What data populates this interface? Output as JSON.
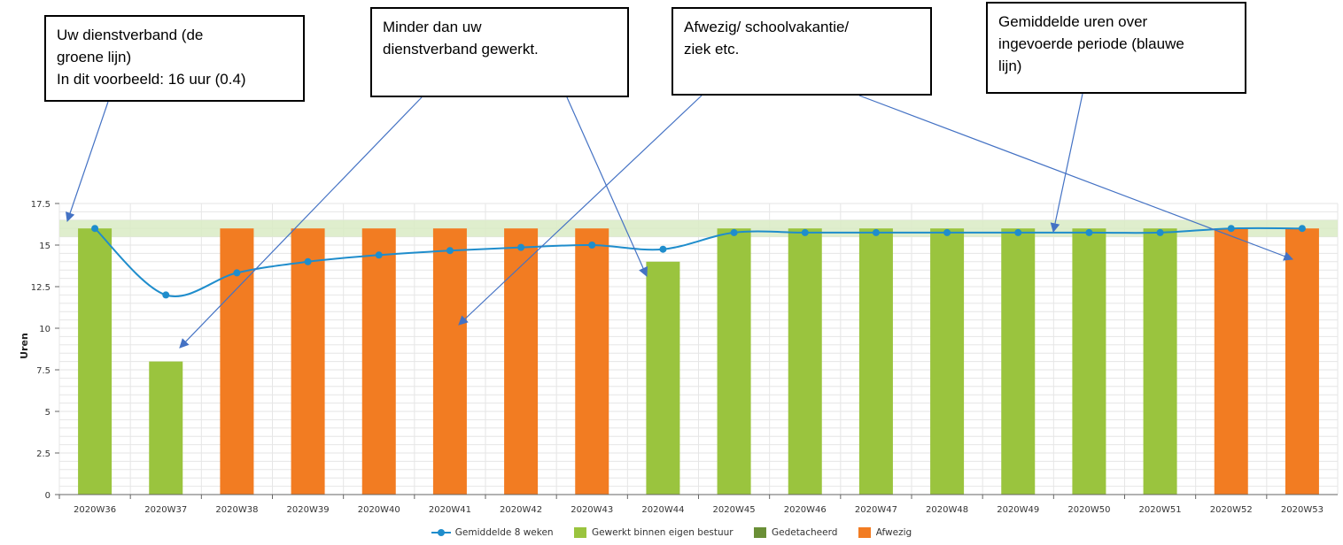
{
  "callouts": [
    {
      "text": "Uw dienstverband (de\ngroene lijn)\nIn dit voorbeeld: 16 uur (0.4)"
    },
    {
      "text": "Minder dan uw\ndienstverband gewerkt."
    },
    {
      "text": "Afwezig/ schoolvakantie/\nziek etc."
    },
    {
      "text": "Gemiddelde uren over\ningevoerde periode (blauwe\nlijn)"
    }
  ],
  "legend": [
    {
      "label": "Gemiddelde 8 weken",
      "kind": "line",
      "color": "#1f8dcc"
    },
    {
      "label": "Gewerkt binnen eigen bestuur",
      "kind": "bar",
      "color": "#9ac43e"
    },
    {
      "label": "Gedetacheerd",
      "kind": "bar",
      "color": "#6a8f36"
    },
    {
      "label": "Afwezig",
      "kind": "bar",
      "color": "#f27c22"
    }
  ],
  "chart_data": {
    "type": "bar",
    "ylabel": "Uren",
    "ylim": [
      0,
      17.5
    ],
    "yticks": [
      "0",
      "2.5",
      "5",
      "7.5",
      "10",
      "12.5",
      "15",
      "17.5"
    ],
    "grid": true,
    "legend_position": "bottom",
    "categories": [
      "2020W36",
      "2020W37",
      "2020W38",
      "2020W39",
      "2020W40",
      "2020W41",
      "2020W42",
      "2020W43",
      "2020W44",
      "2020W45",
      "2020W46",
      "2020W47",
      "2020W48",
      "2020W49",
      "2020W50",
      "2020W51",
      "2020W52",
      "2020W53"
    ],
    "band": {
      "from": 15.5,
      "to": 16.5,
      "color": "#d9ebc4"
    },
    "series": [
      {
        "name": "Gewerkt binnen eigen bestuur",
        "type": "bar",
        "color": "#9ac43e",
        "values": [
          16,
          8,
          null,
          null,
          null,
          null,
          null,
          null,
          14,
          16,
          16,
          16,
          16,
          16,
          16,
          16,
          null,
          null
        ]
      },
      {
        "name": "Gedetacheerd",
        "type": "bar",
        "color": "#6a8f36",
        "values": [
          null,
          null,
          null,
          null,
          null,
          null,
          null,
          null,
          null,
          null,
          null,
          null,
          null,
          null,
          null,
          null,
          null,
          null
        ]
      },
      {
        "name": "Afwezig",
        "type": "bar",
        "color": "#f27c22",
        "values": [
          null,
          null,
          16,
          16,
          16,
          16,
          16,
          16,
          null,
          null,
          null,
          null,
          null,
          null,
          null,
          null,
          16,
          16
        ]
      },
      {
        "name": "Gemiddelde 8 weken",
        "type": "line",
        "color": "#1f8dcc",
        "values": [
          16,
          12,
          13.33,
          14,
          14.4,
          14.67,
          14.86,
          15,
          14.75,
          15.75,
          15.75,
          15.75,
          15.75,
          15.75,
          15.75,
          15.75,
          16,
          16
        ]
      }
    ]
  }
}
